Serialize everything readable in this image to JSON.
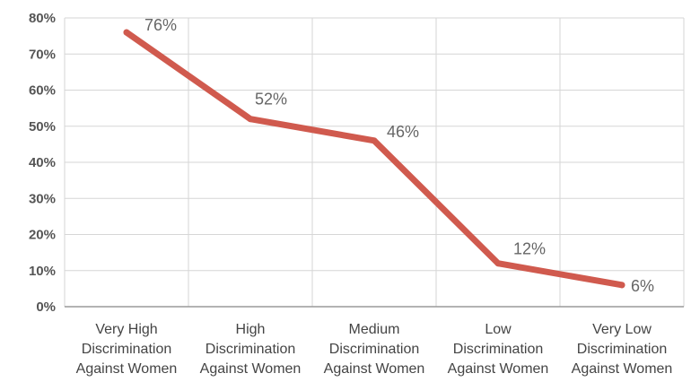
{
  "chart_data": {
    "type": "line",
    "title": "",
    "xlabel": "",
    "ylabel": "",
    "categories": [
      [
        "Very High",
        "Discrimination",
        "Against Women"
      ],
      [
        "High",
        "Discrimination",
        "Against Women"
      ],
      [
        "Medium",
        "Discrimination",
        "Against Women"
      ],
      [
        "Low",
        "Discrimination",
        "Against Women"
      ],
      [
        "Very Low",
        "Discrimination",
        "Against Women"
      ]
    ],
    "series": [
      {
        "values": [
          76,
          52,
          46,
          12,
          6
        ],
        "labels": [
          "76%",
          "52%",
          "46%",
          "12%",
          "6%"
        ],
        "color": "#d05a4e"
      }
    ],
    "ylim": [
      0,
      80
    ],
    "yticks": [
      "0%",
      "10%",
      "20%",
      "30%",
      "40%",
      "50%",
      "60%",
      "70%",
      "80%"
    ],
    "grid": true,
    "legend": "none"
  }
}
